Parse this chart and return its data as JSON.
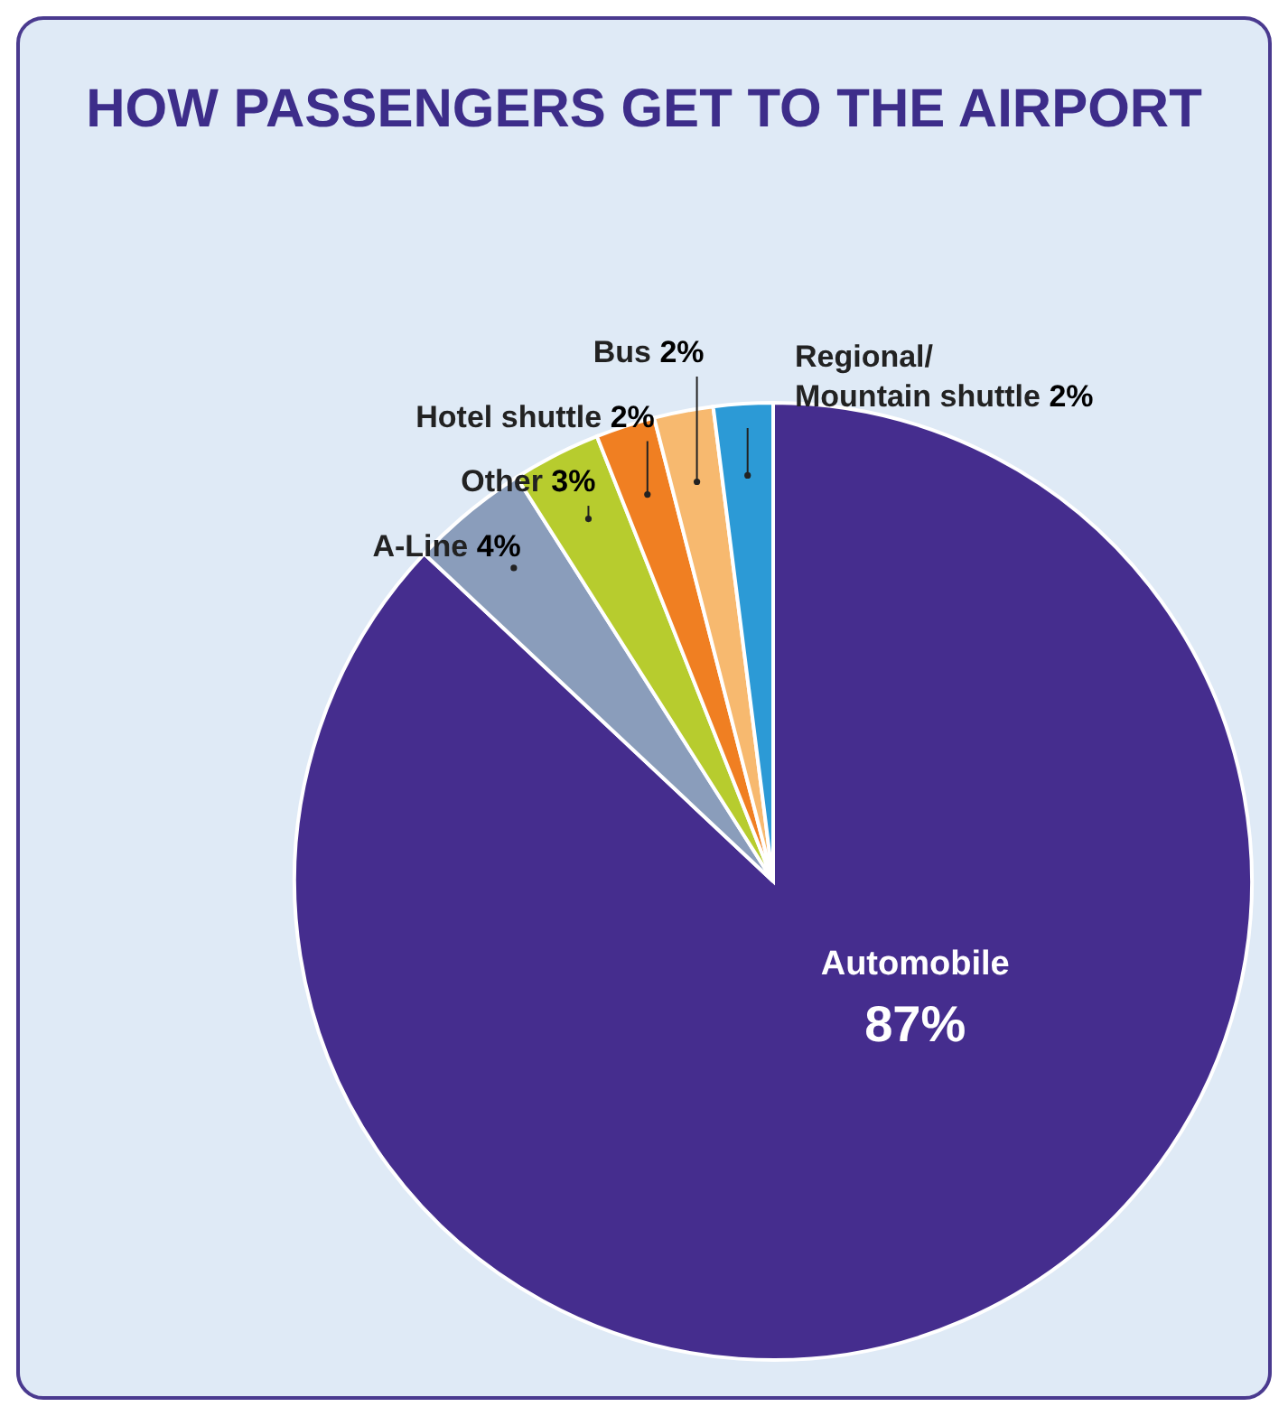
{
  "chart_data": {
    "type": "pie",
    "title": "HOW PASSENGERS GET TO THE AIRPORT",
    "categories": [
      "Automobile",
      "A-Line",
      "Other",
      "Hotel shuttle",
      "Bus",
      "Regional/Mountain shuttle"
    ],
    "values": [
      87,
      4,
      3,
      2,
      2,
      2
    ],
    "value_labels": [
      "87%",
      "4%",
      "3%",
      "2%",
      "2%",
      "2%"
    ],
    "colors": [
      "#452d8e",
      "#8a9dbb",
      "#b7cc2e",
      "#f07f22",
      "#f7b96f",
      "#2c9ad6"
    ],
    "legend": false
  }
}
